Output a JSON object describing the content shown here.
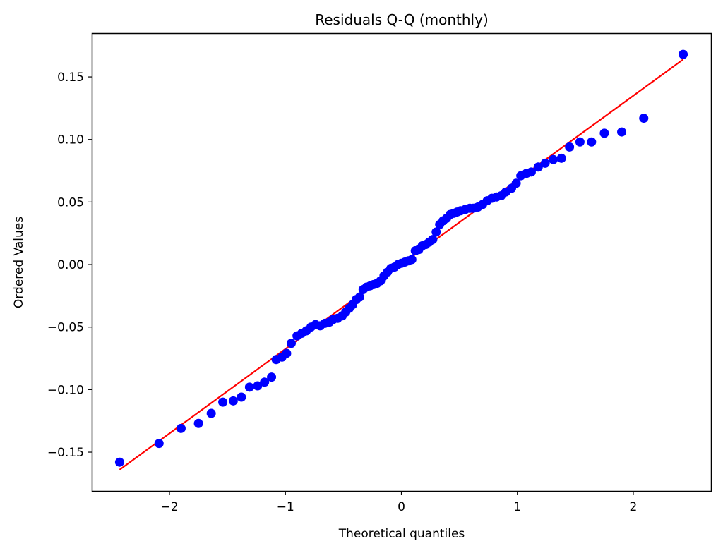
{
  "chart_data": {
    "type": "scatter",
    "title": "Residuals Q-Q (monthly)",
    "xlabel": "Theoretical quantiles",
    "ylabel": "Ordered Values",
    "xlim": [
      -2.67,
      2.67
    ],
    "ylim": [
      -0.181,
      0.185
    ],
    "xticks": [
      -2,
      -1,
      0,
      1,
      2
    ],
    "xtick_labels": [
      "−2",
      "−1",
      "0",
      "1",
      "2"
    ],
    "yticks": [
      -0.15,
      -0.1,
      -0.05,
      0.0,
      0.05,
      0.1,
      0.15
    ],
    "ytick_labels": [
      "−0.15",
      "−0.10",
      "−0.05",
      "0.00",
      "0.05",
      "0.10",
      "0.15"
    ],
    "grid": false,
    "legend": "none",
    "points_color": "#0000ff",
    "fit_line_color": "#ff0000",
    "fit_line": {
      "x": [
        -2.43,
        2.43
      ],
      "y": [
        -0.164,
        0.164
      ]
    },
    "points": [
      [
        -2.43,
        -0.158
      ],
      [
        -2.09,
        -0.143
      ],
      [
        -1.9,
        -0.131
      ],
      [
        -1.75,
        -0.127
      ],
      [
        -1.64,
        -0.119
      ],
      [
        -1.54,
        -0.11
      ],
      [
        -1.45,
        -0.109
      ],
      [
        -1.38,
        -0.106
      ],
      [
        -1.31,
        -0.098
      ],
      [
        -1.24,
        -0.097
      ],
      [
        -1.18,
        -0.094
      ],
      [
        -1.12,
        -0.09
      ],
      [
        -1.08,
        -0.076
      ],
      [
        -1.03,
        -0.074
      ],
      [
        -0.99,
        -0.071
      ],
      [
        -0.95,
        -0.063
      ],
      [
        -0.9,
        -0.057
      ],
      [
        -0.86,
        -0.055
      ],
      [
        -0.82,
        -0.053
      ],
      [
        -0.78,
        -0.05
      ],
      [
        -0.74,
        -0.048
      ],
      [
        -0.7,
        -0.049
      ],
      [
        -0.66,
        -0.047
      ],
      [
        -0.62,
        -0.046
      ],
      [
        -0.59,
        -0.044
      ],
      [
        -0.55,
        -0.043
      ],
      [
        -0.51,
        -0.041
      ],
      [
        -0.48,
        -0.038
      ],
      [
        -0.45,
        -0.035
      ],
      [
        -0.42,
        -0.032
      ],
      [
        -0.39,
        -0.028
      ],
      [
        -0.36,
        -0.026
      ],
      [
        -0.33,
        -0.02
      ],
      [
        -0.3,
        -0.018
      ],
      [
        -0.27,
        -0.017
      ],
      [
        -0.24,
        -0.016
      ],
      [
        -0.21,
        -0.015
      ],
      [
        -0.18,
        -0.013
      ],
      [
        -0.15,
        -0.009
      ],
      [
        -0.12,
        -0.006
      ],
      [
        -0.09,
        -0.003
      ],
      [
        -0.06,
        -0.002
      ],
      [
        -0.03,
        0.0
      ],
      [
        0.0,
        0.001
      ],
      [
        0.03,
        0.002
      ],
      [
        0.06,
        0.003
      ],
      [
        0.09,
        0.004
      ],
      [
        0.12,
        0.011
      ],
      [
        0.15,
        0.012
      ],
      [
        0.18,
        0.015
      ],
      [
        0.21,
        0.016
      ],
      [
        0.24,
        0.018
      ],
      [
        0.27,
        0.02
      ],
      [
        0.3,
        0.026
      ],
      [
        0.33,
        0.032
      ],
      [
        0.36,
        0.035
      ],
      [
        0.39,
        0.037
      ],
      [
        0.42,
        0.04
      ],
      [
        0.45,
        0.041
      ],
      [
        0.48,
        0.042
      ],
      [
        0.51,
        0.043
      ],
      [
        0.55,
        0.044
      ],
      [
        0.59,
        0.045
      ],
      [
        0.62,
        0.045
      ],
      [
        0.66,
        0.046
      ],
      [
        0.7,
        0.048
      ],
      [
        0.74,
        0.051
      ],
      [
        0.78,
        0.053
      ],
      [
        0.82,
        0.054
      ],
      [
        0.86,
        0.055
      ],
      [
        0.9,
        0.058
      ],
      [
        0.95,
        0.061
      ],
      [
        0.99,
        0.065
      ],
      [
        1.03,
        0.071
      ],
      [
        1.08,
        0.073
      ],
      [
        1.12,
        0.074
      ],
      [
        1.18,
        0.078
      ],
      [
        1.24,
        0.081
      ],
      [
        1.31,
        0.084
      ],
      [
        1.38,
        0.085
      ],
      [
        1.45,
        0.094
      ],
      [
        1.54,
        0.098
      ],
      [
        1.64,
        0.098
      ],
      [
        1.75,
        0.105
      ],
      [
        1.9,
        0.106
      ],
      [
        2.09,
        0.117
      ],
      [
        2.43,
        0.168
      ]
    ]
  }
}
